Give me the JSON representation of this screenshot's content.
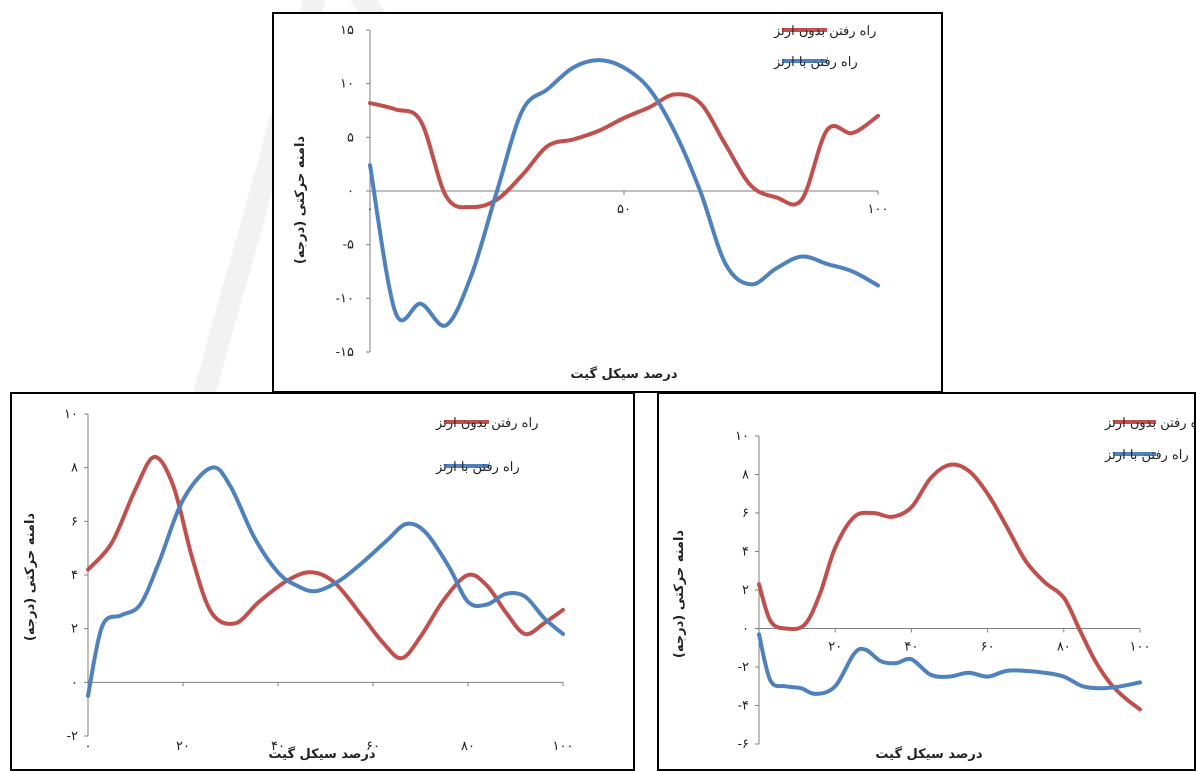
{
  "colors": {
    "red": "#c0504d",
    "blue": "#4f81bd",
    "axis": "#7f7f7f"
  },
  "chart_data": [
    {
      "type": "line",
      "ylabel": "دامنه حرکتی (درجه)",
      "xlabel": "درصد سیکل گیت",
      "xlim": [
        0,
        100
      ],
      "ylim": [
        -15,
        15
      ],
      "yticks": [
        "۱۵",
        "۱۰",
        "۵",
        "۰",
        "-۵",
        "-۱۰",
        "-۱۵"
      ],
      "ytick_values": [
        15,
        10,
        5,
        0,
        -5,
        -10,
        -15
      ],
      "xticks": [
        "۰",
        "۵۰",
        "۱۰۰"
      ],
      "xtick_values": [
        0,
        50,
        100
      ],
      "series": [
        {
          "name": "راه رفتن بدون ارتز",
          "color": "red",
          "points": [
            [
              0,
              8.2
            ],
            [
              5,
              7.6
            ],
            [
              10,
              6.5
            ],
            [
              15,
              -0.5
            ],
            [
              20,
              -1.5
            ],
            [
              25,
              -0.8
            ],
            [
              30,
              1.5
            ],
            [
              35,
              4.2
            ],
            [
              40,
              4.8
            ],
            [
              45,
              5.6
            ],
            [
              50,
              6.8
            ],
            [
              55,
              7.8
            ],
            [
              60,
              9
            ],
            [
              65,
              8.2
            ],
            [
              70,
              4.3
            ],
            [
              75,
              0.5
            ],
            [
              80,
              -0.6
            ],
            [
              85,
              -0.8
            ],
            [
              90,
              5.7
            ],
            [
              95,
              5.4
            ],
            [
              100,
              7
            ]
          ]
        },
        {
          "name": "راه رفتن با ارتز",
          "color": "blue",
          "points": [
            [
              0,
              2.4
            ],
            [
              5,
              -11.3
            ],
            [
              10,
              -10.5
            ],
            [
              15,
              -12.5
            ],
            [
              20,
              -7.8
            ],
            [
              25,
              0
            ],
            [
              30,
              7.5
            ],
            [
              35,
              9.5
            ],
            [
              40,
              11.5
            ],
            [
              45,
              12.2
            ],
            [
              50,
              11.5
            ],
            [
              55,
              9.5
            ],
            [
              60,
              5.5
            ],
            [
              65,
              0
            ],
            [
              70,
              -6.8
            ],
            [
              75,
              -8.7
            ],
            [
              80,
              -7.2
            ],
            [
              85,
              -6.1
            ],
            [
              90,
              -6.8
            ],
            [
              95,
              -7.5
            ],
            [
              100,
              -8.8
            ]
          ]
        }
      ]
    },
    {
      "type": "line",
      "ylabel": "دامنه حرکتی (درجه)",
      "xlabel": "درصد سیکل گیت",
      "xlim": [
        0,
        100
      ],
      "ylim": [
        -2,
        10
      ],
      "yticks": [
        "۱۰",
        "۸",
        "۶",
        "۴",
        "۲",
        "۰",
        "-۲"
      ],
      "ytick_values": [
        10,
        8,
        6,
        4,
        2,
        0,
        -2
      ],
      "xticks": [
        "۰",
        "۲۰",
        "۴۰",
        "۶۰",
        "۸۰",
        "۱۰۰"
      ],
      "xtick_values": [
        0,
        20,
        40,
        60,
        80,
        100
      ],
      "series": [
        {
          "name": "راه رفتن بدون ارتز",
          "color": "red",
          "points": [
            [
              0,
              4.2
            ],
            [
              5,
              5.2
            ],
            [
              10,
              7.2
            ],
            [
              14,
              8.4
            ],
            [
              18,
              7.3
            ],
            [
              22,
              4.6
            ],
            [
              26,
              2.6
            ],
            [
              31,
              2.2
            ],
            [
              36,
              3.0
            ],
            [
              42,
              3.8
            ],
            [
              47,
              4.1
            ],
            [
              52,
              3.7
            ],
            [
              58,
              2.4
            ],
            [
              62,
              1.5
            ],
            [
              66,
              0.9
            ],
            [
              70,
              1.7
            ],
            [
              75,
              3.1
            ],
            [
              80,
              4.0
            ],
            [
              84,
              3.6
            ],
            [
              88,
              2.6
            ],
            [
              92,
              1.8
            ],
            [
              96,
              2.2
            ],
            [
              100,
              2.7
            ]
          ]
        },
        {
          "name": "راه رفتن با ارتز",
          "color": "blue",
          "points": [
            [
              0,
              -0.5
            ],
            [
              3,
              2.1
            ],
            [
              7,
              2.5
            ],
            [
              11,
              2.9
            ],
            [
              15,
              4.5
            ],
            [
              20,
              6.8
            ],
            [
              26,
              8.0
            ],
            [
              30,
              7.3
            ],
            [
              35,
              5.4
            ],
            [
              40,
              4.1
            ],
            [
              44,
              3.6
            ],
            [
              48,
              3.4
            ],
            [
              53,
              3.8
            ],
            [
              58,
              4.5
            ],
            [
              63,
              5.3
            ],
            [
              67,
              5.9
            ],
            [
              71,
              5.6
            ],
            [
              76,
              4.3
            ],
            [
              80,
              3.0
            ],
            [
              84,
              2.9
            ],
            [
              88,
              3.3
            ],
            [
              92,
              3.2
            ],
            [
              96,
              2.4
            ],
            [
              100,
              1.8
            ]
          ]
        }
      ]
    },
    {
      "type": "line",
      "ylabel": "دامنه حرکتی (درجه)",
      "xlabel": "درصد سیکل گیت",
      "xlim": [
        0,
        100
      ],
      "ylim": [
        -6,
        10
      ],
      "yticks": [
        "۱۰",
        "۸",
        "۶",
        "۴",
        "۲",
        "۰",
        "-۲",
        "-۴",
        "-۶"
      ],
      "ytick_values": [
        10,
        8,
        6,
        4,
        2,
        0,
        -2,
        -4,
        -6
      ],
      "xticks": [
        "۲۰",
        "۴۰",
        "۶۰",
        "۸۰",
        "۱۰۰"
      ],
      "xtick_values": [
        20,
        40,
        60,
        80,
        100
      ],
      "series": [
        {
          "name": "راه رفتن بدون ارتز",
          "color": "red",
          "points": [
            [
              0,
              2.3
            ],
            [
              3,
              0.4
            ],
            [
              7,
              0
            ],
            [
              12,
              0.2
            ],
            [
              16,
              1.8
            ],
            [
              20,
              4.2
            ],
            [
              25,
              5.8
            ],
            [
              30,
              6
            ],
            [
              35,
              5.8
            ],
            [
              40,
              6.3
            ],
            [
              45,
              7.8
            ],
            [
              50,
              8.5
            ],
            [
              55,
              8.2
            ],
            [
              60,
              7
            ],
            [
              65,
              5.3
            ],
            [
              70,
              3.5
            ],
            [
              75,
              2.4
            ],
            [
              80,
              1.6
            ],
            [
              84,
              0
            ],
            [
              88,
              -1.6
            ],
            [
              92,
              -2.8
            ],
            [
              96,
              -3.6
            ],
            [
              100,
              -4.2
            ]
          ]
        },
        {
          "name": "راه رفتن با ارتز",
          "color": "blue",
          "points": [
            [
              0,
              -0.3
            ],
            [
              3,
              -2.7
            ],
            [
              7,
              -3
            ],
            [
              11,
              -3.1
            ],
            [
              15,
              -3.4
            ],
            [
              20,
              -3
            ],
            [
              25,
              -1.3
            ],
            [
              28,
              -1.1
            ],
            [
              32,
              -1.7
            ],
            [
              36,
              -1.8
            ],
            [
              40,
              -1.6
            ],
            [
              45,
              -2.4
            ],
            [
              50,
              -2.5
            ],
            [
              55,
              -2.3
            ],
            [
              60,
              -2.5
            ],
            [
              65,
              -2.2
            ],
            [
              70,
              -2.2
            ],
            [
              75,
              -2.3
            ],
            [
              80,
              -2.5
            ],
            [
              85,
              -3
            ],
            [
              90,
              -3.1
            ],
            [
              95,
              -3
            ],
            [
              100,
              -2.8
            ]
          ]
        }
      ]
    }
  ]
}
